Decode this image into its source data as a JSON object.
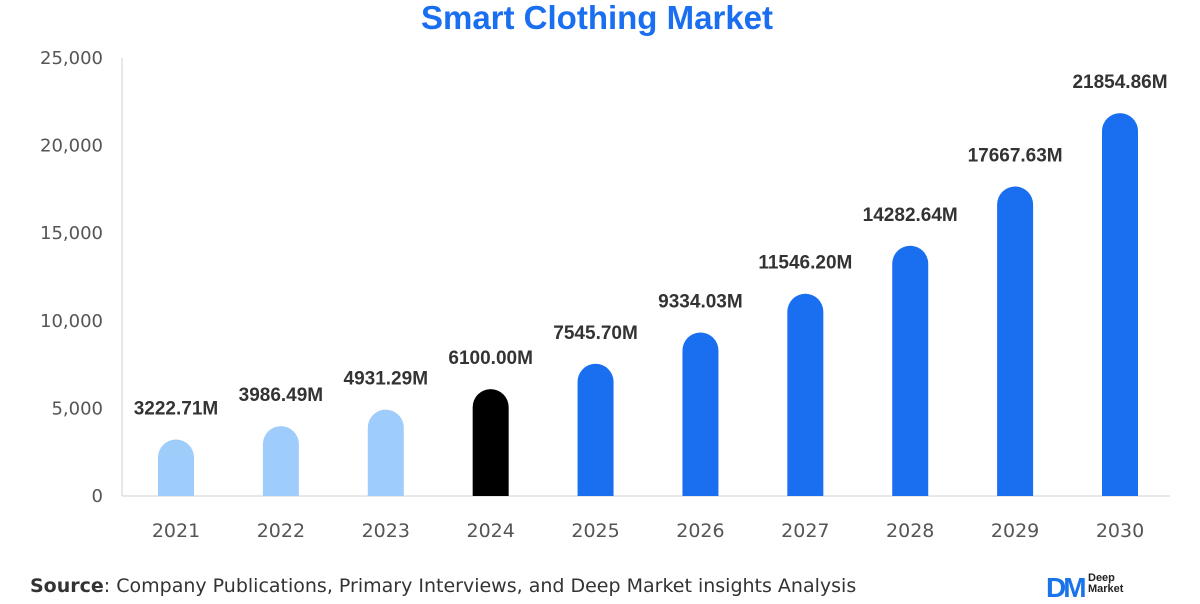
{
  "chart_data": {
    "type": "bar",
    "title": "Smart Clothing Market",
    "xlabel": "",
    "ylabel": "",
    "categories": [
      "2021",
      "2022",
      "2023",
      "2024",
      "2025",
      "2026",
      "2027",
      "2028",
      "2029",
      "2030"
    ],
    "values": [
      3222.71,
      3986.49,
      4931.29,
      6100.0,
      7545.7,
      9334.03,
      11546.2,
      14282.64,
      17667.63,
      21854.86
    ],
    "data_labels": [
      "3222.71M",
      "3986.49M",
      "4931.29M",
      "6100.00M",
      "7545.70M",
      "9334.03M",
      "11546.20M",
      "14282.64M",
      "17667.63M",
      "21854.86M"
    ],
    "yticks": [
      0,
      5000,
      10000,
      15000,
      20000,
      25000
    ],
    "ytick_labels": [
      "0",
      "5,000",
      "10,000",
      "15,000",
      "20,000",
      "25,000"
    ],
    "ylim": [
      0,
      25000
    ],
    "grid": false,
    "legend": "none",
    "bar_colors": [
      "#9fcdfb",
      "#9fcdfb",
      "#9fcdfb",
      "#000000",
      "#1a6ef0",
      "#1a6ef0",
      "#1a6ef0",
      "#1a6ef0",
      "#1a6ef0",
      "#1a6ef0"
    ],
    "title_color": "#1a6ef0"
  },
  "footer": {
    "source_label": "Source",
    "source_text": ": Company Publications, Primary Interviews, and Deep Market insights Analysis"
  },
  "logo": {
    "mark": "DM",
    "line1": "Deep",
    "line2": "Market"
  }
}
